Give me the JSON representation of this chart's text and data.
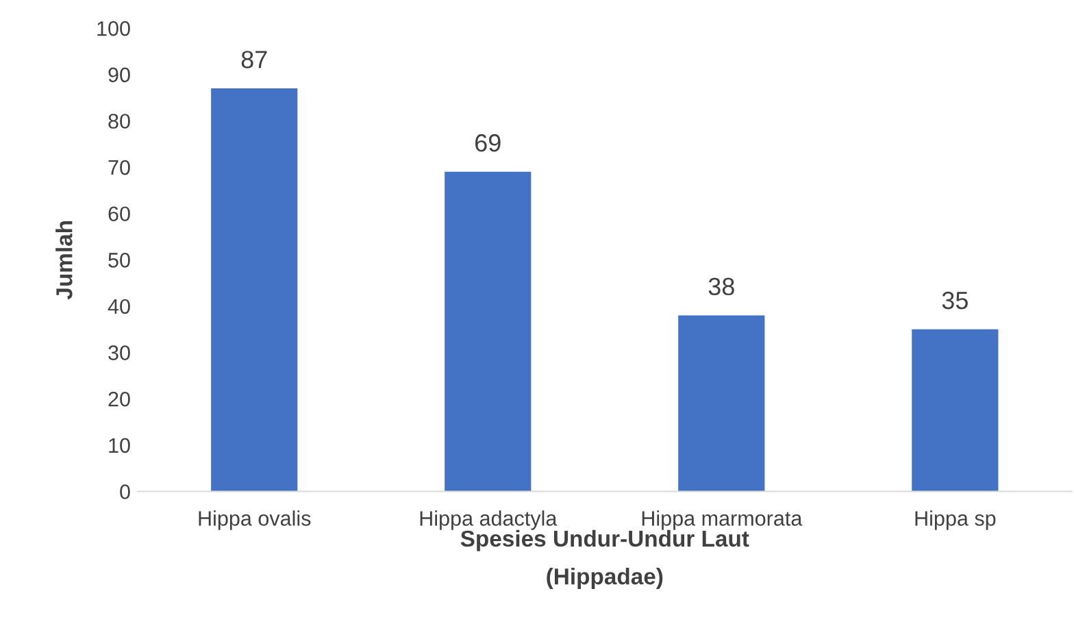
{
  "chart_data": {
    "type": "bar",
    "xlabel": "Spesies Undur-Undur Laut\n(Hippadae)",
    "ylabel": "Jumlah",
    "categories": [
      "Hippa ovalis",
      "Hippa adactyla",
      "Hippa marmorata",
      "Hippa sp"
    ],
    "values": [
      87,
      69,
      38,
      35
    ],
    "color": "#4472c4",
    "ylim": [
      0,
      100
    ],
    "yticks": [
      0,
      10,
      20,
      30,
      40,
      50,
      60,
      70,
      80,
      90,
      100
    ],
    "grid": false,
    "data_labels": true
  }
}
